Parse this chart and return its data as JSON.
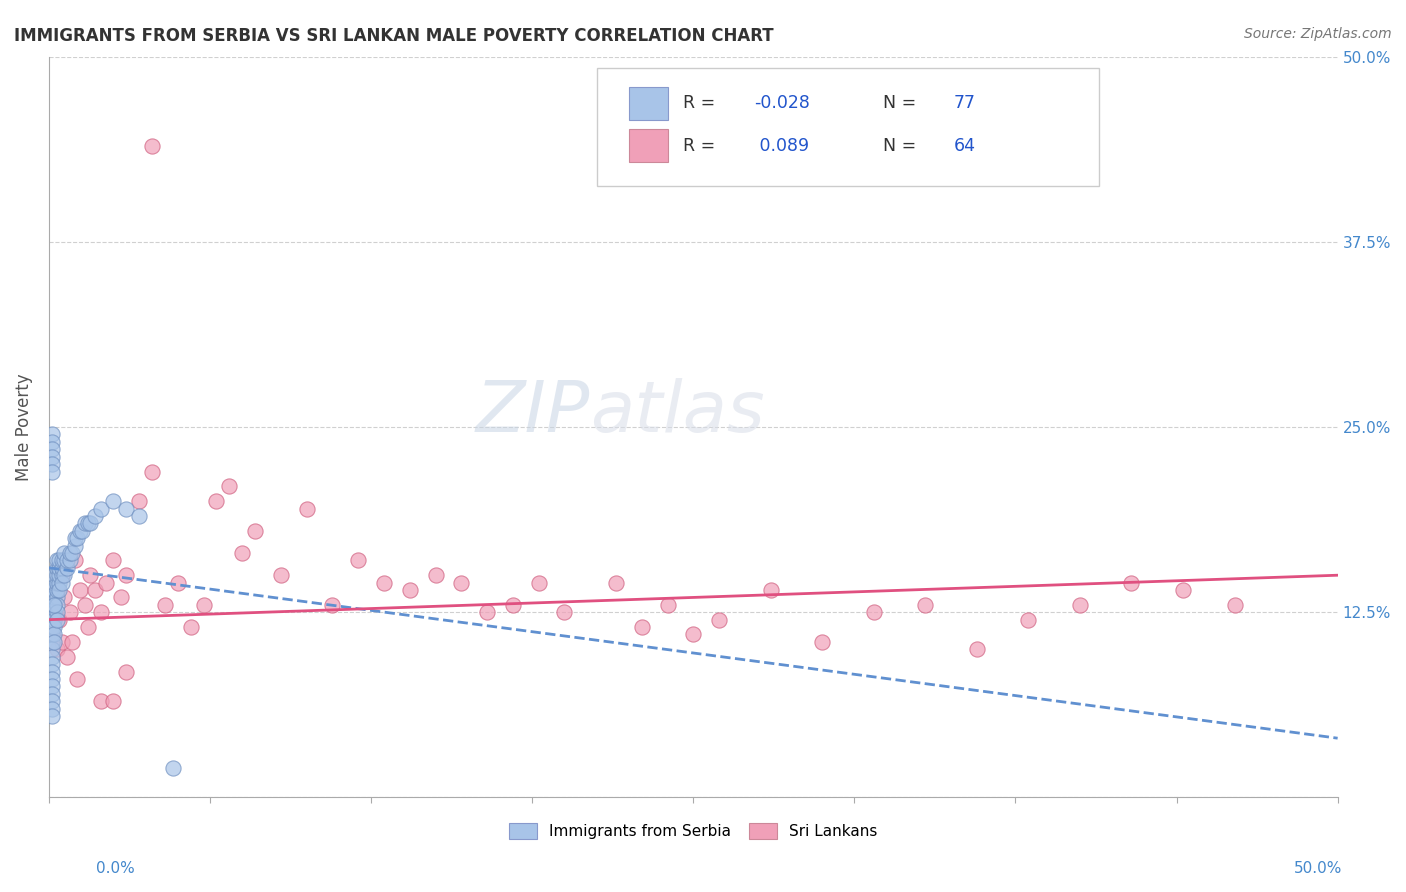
{
  "title": "IMMIGRANTS FROM SERBIA VS SRI LANKAN MALE POVERTY CORRELATION CHART",
  "source": "Source: ZipAtlas.com",
  "ylabel": "Male Poverty",
  "serbia_color": "#a8c4e8",
  "srilanka_color": "#f0a0b8",
  "serbia_edge_color": "#7090c0",
  "srilanka_edge_color": "#d06080",
  "serbia_trend_color": "#6090d0",
  "srilanka_trend_color": "#e05080",
  "background_color": "#ffffff",
  "grid_color": "#d0d0d0",
  "watermark_color": "#d0dcea",
  "serbia_scatter_x": [
    0.001,
    0.001,
    0.001,
    0.001,
    0.001,
    0.001,
    0.001,
    0.001,
    0.001,
    0.001,
    0.001,
    0.001,
    0.001,
    0.001,
    0.001,
    0.001,
    0.001,
    0.001,
    0.001,
    0.001,
    0.002,
    0.002,
    0.002,
    0.002,
    0.002,
    0.002,
    0.002,
    0.002,
    0.002,
    0.002,
    0.003,
    0.003,
    0.003,
    0.003,
    0.003,
    0.003,
    0.003,
    0.003,
    0.003,
    0.004,
    0.004,
    0.004,
    0.004,
    0.004,
    0.005,
    0.005,
    0.005,
    0.005,
    0.006,
    0.006,
    0.006,
    0.007,
    0.007,
    0.008,
    0.008,
    0.009,
    0.01,
    0.01,
    0.011,
    0.012,
    0.013,
    0.014,
    0.015,
    0.016,
    0.018,
    0.02,
    0.025,
    0.03,
    0.035,
    0.001,
    0.001,
    0.001,
    0.001,
    0.001,
    0.001,
    0.048,
    0.002
  ],
  "serbia_scatter_y": [
    0.12,
    0.125,
    0.13,
    0.13,
    0.135,
    0.135,
    0.14,
    0.105,
    0.11,
    0.115,
    0.1,
    0.095,
    0.09,
    0.085,
    0.08,
    0.075,
    0.07,
    0.065,
    0.06,
    0.055,
    0.125,
    0.13,
    0.135,
    0.14,
    0.145,
    0.15,
    0.12,
    0.115,
    0.11,
    0.105,
    0.135,
    0.14,
    0.145,
    0.15,
    0.155,
    0.16,
    0.13,
    0.125,
    0.12,
    0.145,
    0.15,
    0.155,
    0.16,
    0.14,
    0.15,
    0.155,
    0.16,
    0.145,
    0.15,
    0.16,
    0.165,
    0.155,
    0.16,
    0.16,
    0.165,
    0.165,
    0.17,
    0.175,
    0.175,
    0.18,
    0.18,
    0.185,
    0.185,
    0.185,
    0.19,
    0.195,
    0.2,
    0.195,
    0.19,
    0.245,
    0.24,
    0.235,
    0.23,
    0.225,
    0.22,
    0.02,
    0.13
  ],
  "srilanka_scatter_x": [
    0.002,
    0.003,
    0.004,
    0.005,
    0.006,
    0.008,
    0.01,
    0.012,
    0.014,
    0.016,
    0.018,
    0.02,
    0.022,
    0.025,
    0.028,
    0.03,
    0.035,
    0.04,
    0.045,
    0.05,
    0.055,
    0.06,
    0.065,
    0.07,
    0.075,
    0.08,
    0.09,
    0.1,
    0.11,
    0.12,
    0.13,
    0.14,
    0.15,
    0.16,
    0.17,
    0.18,
    0.19,
    0.2,
    0.22,
    0.23,
    0.24,
    0.25,
    0.26,
    0.28,
    0.3,
    0.32,
    0.34,
    0.36,
    0.38,
    0.4,
    0.42,
    0.44,
    0.46,
    0.001,
    0.003,
    0.005,
    0.007,
    0.009,
    0.011,
    0.015,
    0.02,
    0.025,
    0.03,
    0.04
  ],
  "srilanka_scatter_y": [
    0.13,
    0.14,
    0.12,
    0.15,
    0.135,
    0.125,
    0.16,
    0.14,
    0.13,
    0.15,
    0.14,
    0.125,
    0.145,
    0.16,
    0.135,
    0.15,
    0.2,
    0.22,
    0.13,
    0.145,
    0.115,
    0.13,
    0.2,
    0.21,
    0.165,
    0.18,
    0.15,
    0.195,
    0.13,
    0.16,
    0.145,
    0.14,
    0.15,
    0.145,
    0.125,
    0.13,
    0.145,
    0.125,
    0.145,
    0.115,
    0.13,
    0.11,
    0.12,
    0.14,
    0.105,
    0.125,
    0.13,
    0.1,
    0.12,
    0.13,
    0.145,
    0.14,
    0.13,
    0.11,
    0.1,
    0.105,
    0.095,
    0.105,
    0.08,
    0.115,
    0.065,
    0.065,
    0.085,
    0.44
  ],
  "serbia_trend_x": [
    0.0,
    0.5
  ],
  "serbia_trend_y": [
    0.155,
    0.04
  ],
  "srilanka_trend_x": [
    0.0,
    0.5
  ],
  "srilanka_trend_y": [
    0.12,
    0.15
  ],
  "xlim": [
    0.0,
    0.5
  ],
  "ylim": [
    0.0,
    0.5
  ],
  "ytick_positions": [
    0.0,
    0.125,
    0.25,
    0.375,
    0.5
  ],
  "ytick_labels_right": [
    "",
    "12.5%",
    "25.0%",
    "37.5%",
    "50.0%"
  ],
  "legend_r1": "-0.028",
  "legend_n1": "77",
  "legend_r2": "0.089",
  "legend_n2": "64",
  "title_color": "#333333",
  "axis_label_color": "#555555",
  "right_tick_color": "#4488cc",
  "bottom_tick_color": "#4488cc"
}
